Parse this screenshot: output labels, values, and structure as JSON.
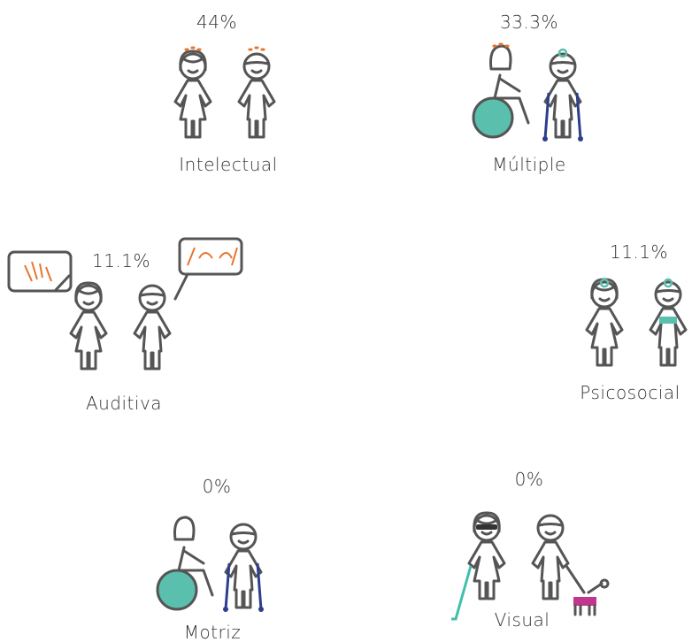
{
  "items": [
    {
      "percent": "44%",
      "label": "Intelectual"
    },
    {
      "percent": "33.3%",
      "label": "Múltiple"
    },
    {
      "percent": "11.1%",
      "label": "Auditiva"
    },
    {
      "percent": "11.1%",
      "label": "Psicosocial"
    },
    {
      "percent": "0%",
      "label": "Motriz"
    },
    {
      "percent": "0%",
      "label": "Visual"
    }
  ]
}
